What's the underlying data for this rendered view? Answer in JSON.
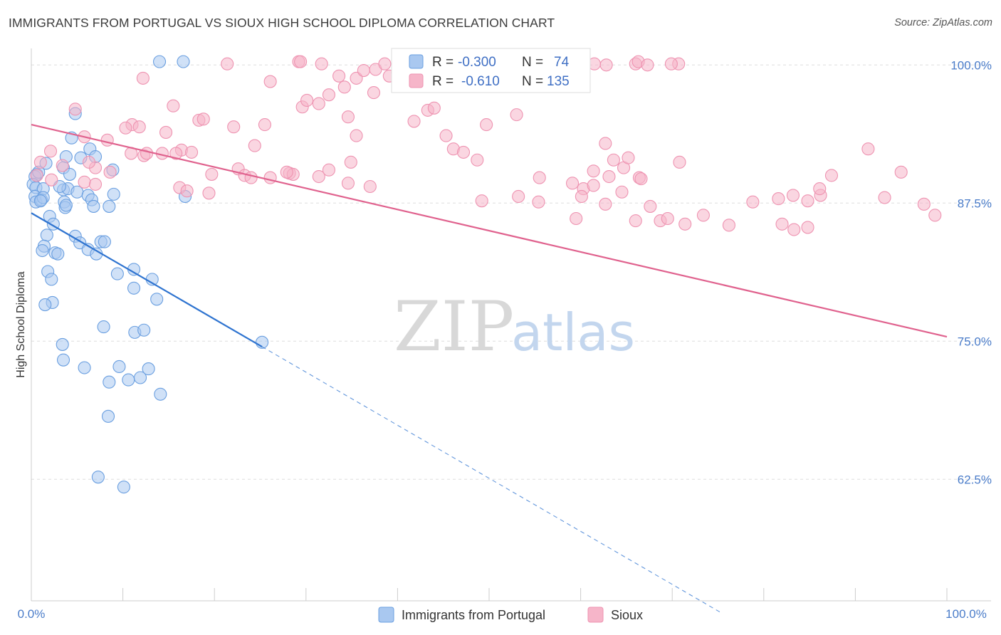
{
  "title": "IMMIGRANTS FROM PORTUGAL VS SIOUX HIGH SCHOOL DIPLOMA CORRELATION CHART",
  "source": "Source: ZipAtlas.com",
  "watermark": {
    "zip": "ZIP",
    "atlas": "atlas"
  },
  "legend": {
    "rows": [
      {
        "r_label": "R =",
        "r_value": "-0.300",
        "n_label": "N =",
        "n_value": "74",
        "color": "#a9c8f0"
      },
      {
        "r_label": "R =",
        "r_value": "-0.610",
        "n_label": "N =",
        "n_value": "135",
        "color": "#f6b5c9"
      }
    ]
  },
  "bottom_legend": [
    "Immigrants from Portugal",
    "Sioux"
  ],
  "chart_data": {
    "type": "scatter",
    "title": "IMMIGRANTS FROM PORTUGAL VS SIOUX HIGH SCHOOL DIPLOMA CORRELATION CHART",
    "xlabel": "",
    "ylabel": "High School Diploma",
    "xlim": [
      0,
      100
    ],
    "ylim": [
      51.5,
      101.5
    ],
    "x_tick_labels": [
      "0.0%",
      "100.0%"
    ],
    "y_ticks": [
      62.5,
      75.0,
      87.5,
      100.0
    ],
    "y_tick_labels": [
      "62.5%",
      "75.0%",
      "87.5%",
      "100.0%"
    ],
    "grid": true,
    "legend_position": "top-center",
    "series": [
      {
        "name": "Immigrants from Portugal",
        "color": "#a9c8f0",
        "stroke": "#6a9fe0",
        "line_color": "#2f74d0",
        "trend": {
          "x0": 0,
          "y0": 86.6,
          "x1": 25.2,
          "y1": 74.5,
          "dashed_to_x": 75.5
        },
        "points": [
          [
            14.0,
            100.3
          ],
          [
            16.6,
            100.3
          ],
          [
            4.8,
            95.6
          ],
          [
            4.4,
            93.4
          ],
          [
            6.4,
            92.4
          ],
          [
            7.0,
            91.7
          ],
          [
            3.8,
            91.7
          ],
          [
            1.6,
            91.1
          ],
          [
            3.5,
            90.7
          ],
          [
            0.6,
            90.1
          ],
          [
            0.4,
            89.9
          ],
          [
            8.9,
            90.5
          ],
          [
            0.2,
            89.2
          ],
          [
            0.5,
            88.9
          ],
          [
            1.3,
            88.8
          ],
          [
            3.5,
            88.7
          ],
          [
            4.0,
            88.8
          ],
          [
            5.0,
            88.5
          ],
          [
            0.4,
            88.1
          ],
          [
            6.2,
            88.2
          ],
          [
            0.5,
            87.6
          ],
          [
            1.1,
            87.8
          ],
          [
            3.6,
            87.6
          ],
          [
            3.7,
            87.1
          ],
          [
            3.8,
            87.3
          ],
          [
            6.6,
            87.8
          ],
          [
            8.5,
            87.2
          ],
          [
            9.0,
            88.3
          ],
          [
            16.8,
            88.1
          ],
          [
            4.2,
            90.1
          ],
          [
            2.0,
            86.3
          ],
          [
            2.4,
            85.6
          ],
          [
            1.7,
            84.6
          ],
          [
            4.8,
            84.5
          ],
          [
            5.3,
            83.9
          ],
          [
            7.6,
            84.0
          ],
          [
            8.0,
            84.0
          ],
          [
            1.4,
            83.6
          ],
          [
            1.2,
            83.2
          ],
          [
            2.6,
            83.0
          ],
          [
            2.9,
            82.9
          ],
          [
            6.2,
            83.3
          ],
          [
            7.1,
            82.9
          ],
          [
            1.8,
            81.3
          ],
          [
            9.4,
            81.1
          ],
          [
            11.2,
            81.5
          ],
          [
            2.2,
            80.6
          ],
          [
            13.2,
            80.6
          ],
          [
            11.2,
            79.8
          ],
          [
            2.3,
            78.5
          ],
          [
            1.5,
            78.3
          ],
          [
            13.7,
            78.8
          ],
          [
            7.9,
            76.3
          ],
          [
            11.3,
            75.8
          ],
          [
            12.3,
            76.0
          ],
          [
            25.2,
            74.9
          ],
          [
            3.4,
            74.7
          ],
          [
            3.5,
            73.3
          ],
          [
            5.8,
            72.6
          ],
          [
            9.6,
            72.7
          ],
          [
            12.8,
            72.5
          ],
          [
            8.5,
            71.3
          ],
          [
            10.6,
            71.5
          ],
          [
            11.9,
            71.7
          ],
          [
            14.1,
            70.2
          ],
          [
            8.4,
            68.2
          ],
          [
            7.3,
            62.7
          ],
          [
            10.1,
            61.8
          ],
          [
            3.1,
            89.0
          ],
          [
            1.3,
            88.0
          ],
          [
            5.4,
            91.6
          ],
          [
            0.8,
            90.3
          ],
          [
            1.0,
            87.7
          ],
          [
            6.8,
            87.2
          ]
        ]
      },
      {
        "name": "Sioux",
        "color": "#f6b5c9",
        "stroke": "#ee93b1",
        "line_color": "#e0628e",
        "trend": {
          "x0": 0,
          "y0": 94.6,
          "x1": 100,
          "y1": 75.4
        },
        "points": [
          [
            21.4,
            100.1
          ],
          [
            31.7,
            100.1
          ],
          [
            44.2,
            100.1
          ],
          [
            58.1,
            100.1
          ],
          [
            66.0,
            100.1
          ],
          [
            70.7,
            100.1
          ],
          [
            66.3,
            100.3
          ],
          [
            41.6,
            100.3
          ],
          [
            29.2,
            100.3
          ],
          [
            29.4,
            100.3
          ],
          [
            12.2,
            98.8
          ],
          [
            26.1,
            98.5
          ],
          [
            32.5,
            97.3
          ],
          [
            15.5,
            96.3
          ],
          [
            29.6,
            96.2
          ],
          [
            30.1,
            96.8
          ],
          [
            31.4,
            96.5
          ],
          [
            34.2,
            98.0
          ],
          [
            35.5,
            98.8
          ],
          [
            36.3,
            99.5
          ],
          [
            37.4,
            97.5
          ],
          [
            39.1,
            99.0
          ],
          [
            40.7,
            98.7
          ],
          [
            42.5,
            98.4
          ],
          [
            46.4,
            98.5
          ],
          [
            48.0,
            100.3
          ],
          [
            54.6,
            99.5
          ],
          [
            55.9,
            99.8
          ],
          [
            61.5,
            100.1
          ],
          [
            67.3,
            100.0
          ],
          [
            69.9,
            100.1
          ],
          [
            62.8,
            100.0
          ],
          [
            33.6,
            99.0
          ],
          [
            34.6,
            95.3
          ],
          [
            35.5,
            93.6
          ],
          [
            37.6,
            99.6
          ],
          [
            38.6,
            100.1
          ],
          [
            40.0,
            99.3
          ],
          [
            41.8,
            94.9
          ],
          [
            43.3,
            95.9
          ],
          [
            44.0,
            96.1
          ],
          [
            55.7,
            100.1
          ],
          [
            4.8,
            96.0
          ],
          [
            11.0,
            94.6
          ],
          [
            12.3,
            91.8
          ],
          [
            14.7,
            93.9
          ],
          [
            18.3,
            95.0
          ],
          [
            18.8,
            95.1
          ],
          [
            16.4,
            92.3
          ],
          [
            17.5,
            92.1
          ],
          [
            10.9,
            92.0
          ],
          [
            10.3,
            94.3
          ],
          [
            8.3,
            93.2
          ],
          [
            5.8,
            93.5
          ],
          [
            2.1,
            92.2
          ],
          [
            1.0,
            91.2
          ],
          [
            3.4,
            90.9
          ],
          [
            7.0,
            90.7
          ],
          [
            8.6,
            90.3
          ],
          [
            12.6,
            92.0
          ],
          [
            14.3,
            92.0
          ],
          [
            15.8,
            92.0
          ],
          [
            19.7,
            90.1
          ],
          [
            22.6,
            90.6
          ],
          [
            23.3,
            90.0
          ],
          [
            24.0,
            89.8
          ],
          [
            26.1,
            89.8
          ],
          [
            28.2,
            90.2
          ],
          [
            28.6,
            90.1
          ],
          [
            16.2,
            88.9
          ],
          [
            17.0,
            88.6
          ],
          [
            19.4,
            88.4
          ],
          [
            11.8,
            94.4
          ],
          [
            6.3,
            91.2
          ],
          [
            5.8,
            89.4
          ],
          [
            7.0,
            89.2
          ],
          [
            2.2,
            89.6
          ],
          [
            0.6,
            90.0
          ],
          [
            22.1,
            94.4
          ],
          [
            25.5,
            94.6
          ],
          [
            24.4,
            92.7
          ],
          [
            27.9,
            90.3
          ],
          [
            31.4,
            89.9
          ],
          [
            34.9,
            91.2
          ],
          [
            32.5,
            90.5
          ],
          [
            34.6,
            89.3
          ],
          [
            37.0,
            89.0
          ],
          [
            48.7,
            91.4
          ],
          [
            53.0,
            95.5
          ],
          [
            61.4,
            90.4
          ],
          [
            64.7,
            90.7
          ],
          [
            63.6,
            91.4
          ],
          [
            65.2,
            91.6
          ],
          [
            70.8,
            91.2
          ],
          [
            55.5,
            89.8
          ],
          [
            59.1,
            89.3
          ],
          [
            60.3,
            88.8
          ],
          [
            63.1,
            89.9
          ],
          [
            66.4,
            89.8
          ],
          [
            66.6,
            89.7
          ],
          [
            49.2,
            87.7
          ],
          [
            53.2,
            88.1
          ],
          [
            55.4,
            87.6
          ],
          [
            59.5,
            86.1
          ],
          [
            60.1,
            88.1
          ],
          [
            62.7,
            87.4
          ],
          [
            64.5,
            88.5
          ],
          [
            67.6,
            87.2
          ],
          [
            73.4,
            86.4
          ],
          [
            78.8,
            87.6
          ],
          [
            81.6,
            87.9
          ],
          [
            83.2,
            88.2
          ],
          [
            84.8,
            87.7
          ],
          [
            86.2,
            88.2
          ],
          [
            86.1,
            88.8
          ],
          [
            87.4,
            90.0
          ],
          [
            93.2,
            88.0
          ],
          [
            46.1,
            92.4
          ],
          [
            45.3,
            93.6
          ],
          [
            47.2,
            92.1
          ],
          [
            61.4,
            89.1
          ],
          [
            49.7,
            94.6
          ],
          [
            66.0,
            85.9
          ],
          [
            68.7,
            85.9
          ],
          [
            69.5,
            86.1
          ],
          [
            71.4,
            85.6
          ],
          [
            76.2,
            85.5
          ],
          [
            82.0,
            85.6
          ],
          [
            83.3,
            85.1
          ],
          [
            84.8,
            85.3
          ],
          [
            62.7,
            92.9
          ],
          [
            91.4,
            92.4
          ],
          [
            95.0,
            90.3
          ],
          [
            97.5,
            87.4
          ],
          [
            98.7,
            86.4
          ]
        ]
      }
    ]
  }
}
